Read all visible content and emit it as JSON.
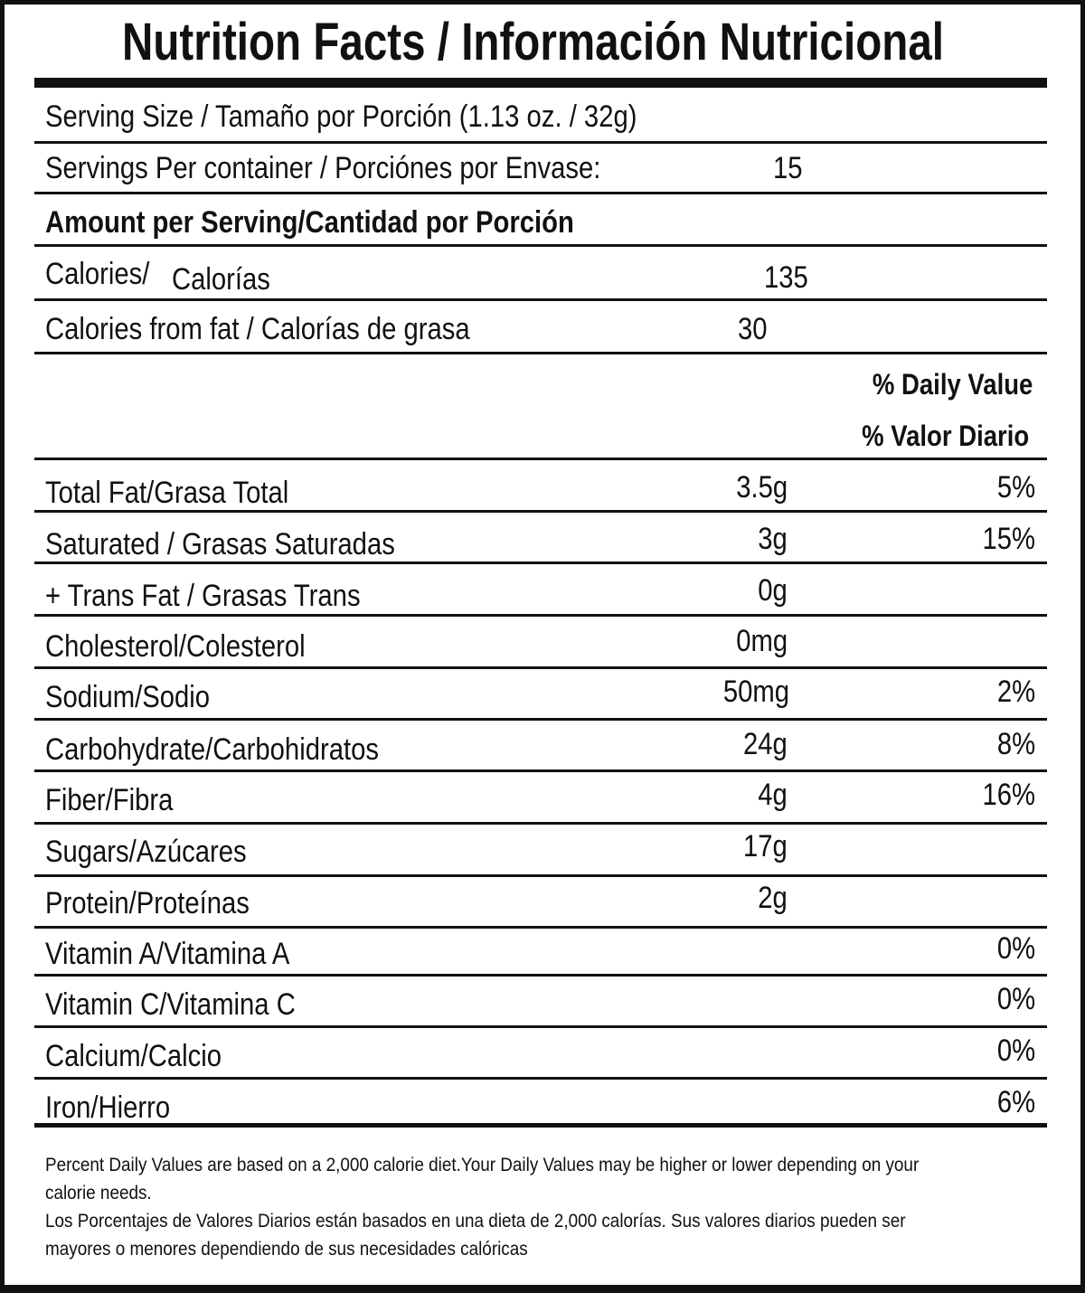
{
  "title": "Nutrition Facts / Información Nutricional",
  "serving_size": "Serving Size / Tamaño por Porción (1.13 oz. / 32g)",
  "servings_per_container": {
    "label": "Servings Per container / Porciónes por Envase:",
    "value": "15"
  },
  "amount_per_serving": "Amount per Serving/Cantidad por Porción",
  "calories": {
    "label_en": "Calories/",
    "label_es": "Calorías",
    "value": "135"
  },
  "calories_from_fat": {
    "label": "Calories from fat / Calorías de grasa",
    "value": "30"
  },
  "daily_value_header": {
    "en": "% Daily Value",
    "es": "% Valor Diario"
  },
  "nutrients": [
    {
      "label": "Total Fat/Grasa Total",
      "amount": "3.5g",
      "dv": "5%"
    },
    {
      "label": "Saturated / Grasas Saturadas",
      "amount": "3g",
      "dv": "15%"
    },
    {
      "label": "+ Trans Fat / Grasas Trans",
      "amount": "0g",
      "dv": ""
    },
    {
      "label": "Cholesterol/Colesterol",
      "amount": "0mg",
      "dv": ""
    },
    {
      "label": "Sodium/Sodio",
      "amount": "50mg",
      "dv": "2%"
    },
    {
      "label": "Carbohydrate/Carbohidratos",
      "amount": "24g",
      "dv": "8%"
    },
    {
      "label": "Fiber/Fibra",
      "amount": "4g",
      "dv": "16%"
    },
    {
      "label": "Sugars/Azúcares",
      "amount": "17g",
      "dv": ""
    },
    {
      "label": "Protein/Proteínas",
      "amount": "2g",
      "dv": ""
    },
    {
      "label": "Vitamin A/Vitamina A",
      "amount": "",
      "dv": "0%"
    },
    {
      "label": "Vitamin C/Vitamina C",
      "amount": "",
      "dv": "0%"
    },
    {
      "label": "Calcium/Calcio",
      "amount": "",
      "dv": "0%"
    },
    {
      "label": "Iron/Hierro",
      "amount": "",
      "dv": "6%"
    }
  ],
  "footnote": {
    "en_line1": "Percent Daily Values are based on a 2,000 calorie diet.Your Daily Values may be higher or lower depending on your",
    "en_line2": "calorie needs.",
    "es_line1": "Los Porcentajes de Valores Diarios están basados en una dieta de 2,000 calorías. Sus valores diarios pueden ser",
    "es_line2": "mayores o menores dependiendo de sus necesidades calóricas"
  }
}
